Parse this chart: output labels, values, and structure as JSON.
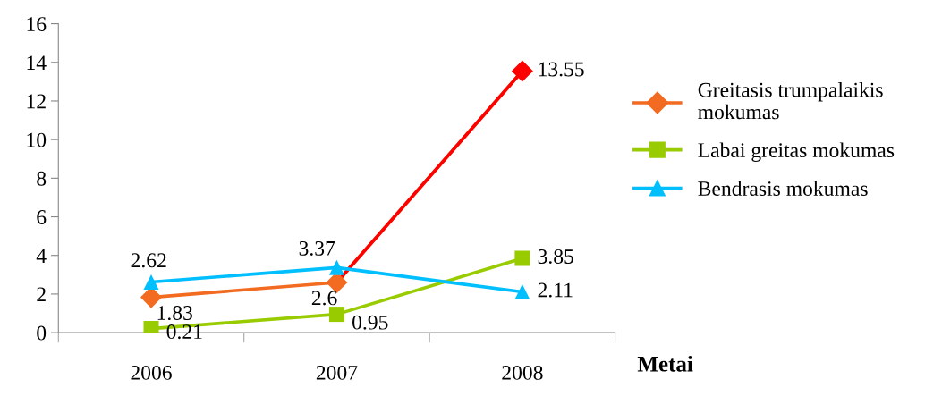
{
  "chart_data": {
    "type": "line",
    "xlabel": "Metai",
    "categories": [
      "2006",
      "2007",
      "2008"
    ],
    "series": [
      {
        "name": "Greitasis trumpalaikis mokumas",
        "color": "#f26b21",
        "colors": [
          "#f26b21",
          "#f26b21",
          "#ff0000"
        ],
        "marker": "diamond",
        "values": [
          1.83,
          2.6,
          13.55
        ]
      },
      {
        "name": "Labai greitas mokumas",
        "color": "#99cc00",
        "marker": "square",
        "values": [
          0.21,
          0.95,
          3.85
        ]
      },
      {
        "name": "Bendrasis mokumas",
        "color": "#00bfff",
        "marker": "triangle",
        "values": [
          2.62,
          3.37,
          2.11
        ]
      }
    ],
    "ylim": [
      0,
      16
    ],
    "yticks": [
      0,
      2,
      4,
      6,
      8,
      10,
      12,
      14,
      16
    ],
    "grid": false,
    "legend": "right",
    "data_labels": true,
    "line_style": "solid"
  }
}
